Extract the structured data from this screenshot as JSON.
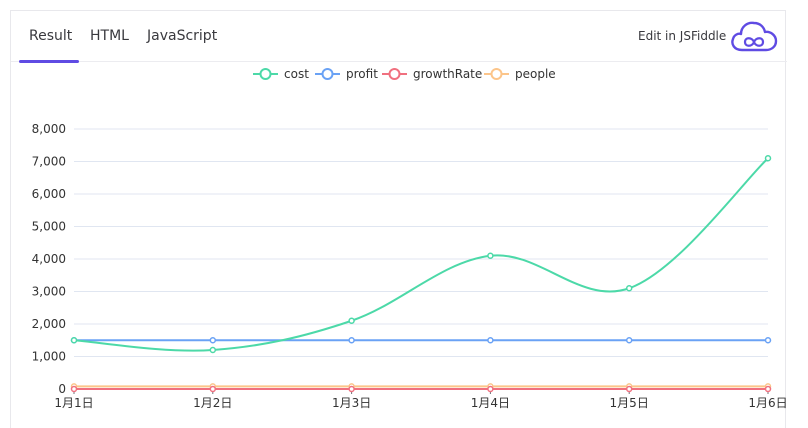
{
  "tabs": [
    {
      "label": "Result",
      "active": true
    },
    {
      "label": "HTML",
      "active": false
    },
    {
      "label": "JavaScript",
      "active": false
    }
  ],
  "edit_link": {
    "label": "Edit in JSFiddle",
    "icon": "jsfiddle-cloud-icon"
  },
  "colors": {
    "accent": "#5f4be3",
    "cost": "#4cd9a8",
    "profit": "#6aa2f5",
    "growthRate": "#f0707f",
    "people": "#fcc58a"
  },
  "chart_data": {
    "type": "line",
    "categories": [
      "1月1日",
      "1月2日",
      "1月3日",
      "1月4日",
      "1月5日",
      "1月6日"
    ],
    "series": [
      {
        "name": "cost",
        "values": [
          1500,
          1200,
          2100,
          4100,
          3100,
          7100
        ]
      },
      {
        "name": "profit",
        "values": [
          1500,
          1500,
          1500,
          1500,
          1500,
          1500
        ]
      },
      {
        "name": "growthRate",
        "values": [
          0,
          0,
          0,
          0,
          0,
          0
        ]
      },
      {
        "name": "people",
        "values": [
          80,
          80,
          80,
          80,
          80,
          80
        ]
      }
    ],
    "yticks": [
      "0",
      "1,000",
      "2,000",
      "3,000",
      "4,000",
      "5,000",
      "6,000",
      "7,000",
      "8,000"
    ],
    "ylim": [
      0,
      8000
    ],
    "legend_position": "top-center",
    "grid": true,
    "smooth": true
  }
}
